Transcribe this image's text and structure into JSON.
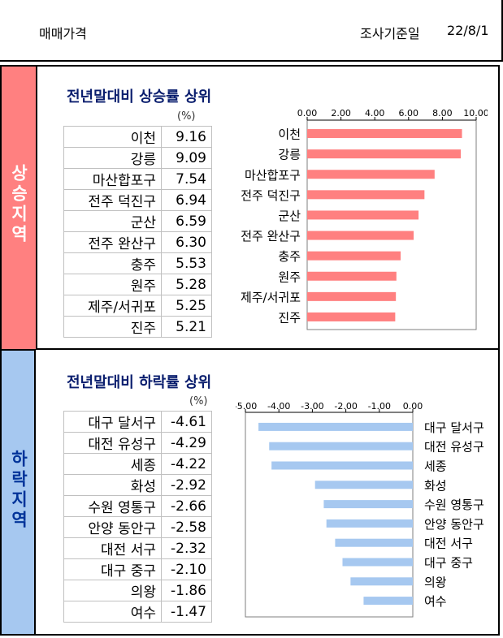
{
  "header": {
    "title": "매매가격",
    "date_label": "조사기준일",
    "date": "22/8/1"
  },
  "sections": {
    "rise": {
      "side_label": "상승지역",
      "title": "전년말대비 상승률 상위",
      "unit": "(%)",
      "rows": [
        {
          "region": "이천",
          "value": "9.16"
        },
        {
          "region": "강릉",
          "value": "9.09"
        },
        {
          "region": "마산합포구",
          "value": "7.54"
        },
        {
          "region": "전주 덕진구",
          "value": "6.94"
        },
        {
          "region": "군산",
          "value": "6.59"
        },
        {
          "region": "전주 완산구",
          "value": "6.30"
        },
        {
          "region": "충주",
          "value": "5.53"
        },
        {
          "region": "원주",
          "value": "5.28"
        },
        {
          "region": "제주/서귀포",
          "value": "5.25"
        },
        {
          "region": "진주",
          "value": "5.21"
        }
      ]
    },
    "fall": {
      "side_label": "하락지역",
      "title": "전년말대비 하락률 상위",
      "unit": "(%)",
      "rows": [
        {
          "region": "대구 달서구",
          "value": "-4.61"
        },
        {
          "region": "대전 유성구",
          "value": "-4.29"
        },
        {
          "region": "세종",
          "value": "-4.22"
        },
        {
          "region": "화성",
          "value": "-2.92"
        },
        {
          "region": "수원 영통구",
          "value": "-2.66"
        },
        {
          "region": "안양 동안구",
          "value": "-2.58"
        },
        {
          "region": "대전 서구",
          "value": "-2.32"
        },
        {
          "region": "대구 중구",
          "value": "-2.10"
        },
        {
          "region": "의왕",
          "value": "-1.86"
        },
        {
          "region": "여수",
          "value": "-1.47"
        }
      ]
    }
  },
  "chart_data": [
    {
      "type": "bar",
      "orientation": "horizontal",
      "categories": [
        "이천",
        "강릉",
        "마산합포구",
        "전주 덕진구",
        "군산",
        "전주 완산구",
        "충주",
        "원주",
        "제주/서귀포",
        "진주"
      ],
      "values": [
        9.16,
        9.09,
        7.54,
        6.94,
        6.59,
        6.3,
        5.53,
        5.28,
        5.25,
        5.21
      ],
      "xlim": [
        0,
        10
      ],
      "ticks": [
        "0.00",
        "2.00",
        "4.00",
        "6.00",
        "8.00",
        "10.00"
      ],
      "color": "#ff8080",
      "axis_position": "top",
      "grid": false
    },
    {
      "type": "bar",
      "orientation": "horizontal",
      "categories": [
        "대구 달서구",
        "대전 유성구",
        "세종",
        "화성",
        "수원 영통구",
        "안양 동안구",
        "대전 서구",
        "대구 중구",
        "의왕",
        "여수"
      ],
      "values": [
        -4.61,
        -4.29,
        -4.22,
        -2.92,
        -2.66,
        -2.58,
        -2.32,
        -2.1,
        -1.86,
        -1.47
      ],
      "xlim": [
        -5,
        0
      ],
      "ticks": [
        "-5.00",
        "-4.00",
        "-3.00",
        "-2.00",
        "-1.00",
        "0.00"
      ],
      "color": "#a6c8f0",
      "axis_position": "top",
      "grid": false
    }
  ]
}
